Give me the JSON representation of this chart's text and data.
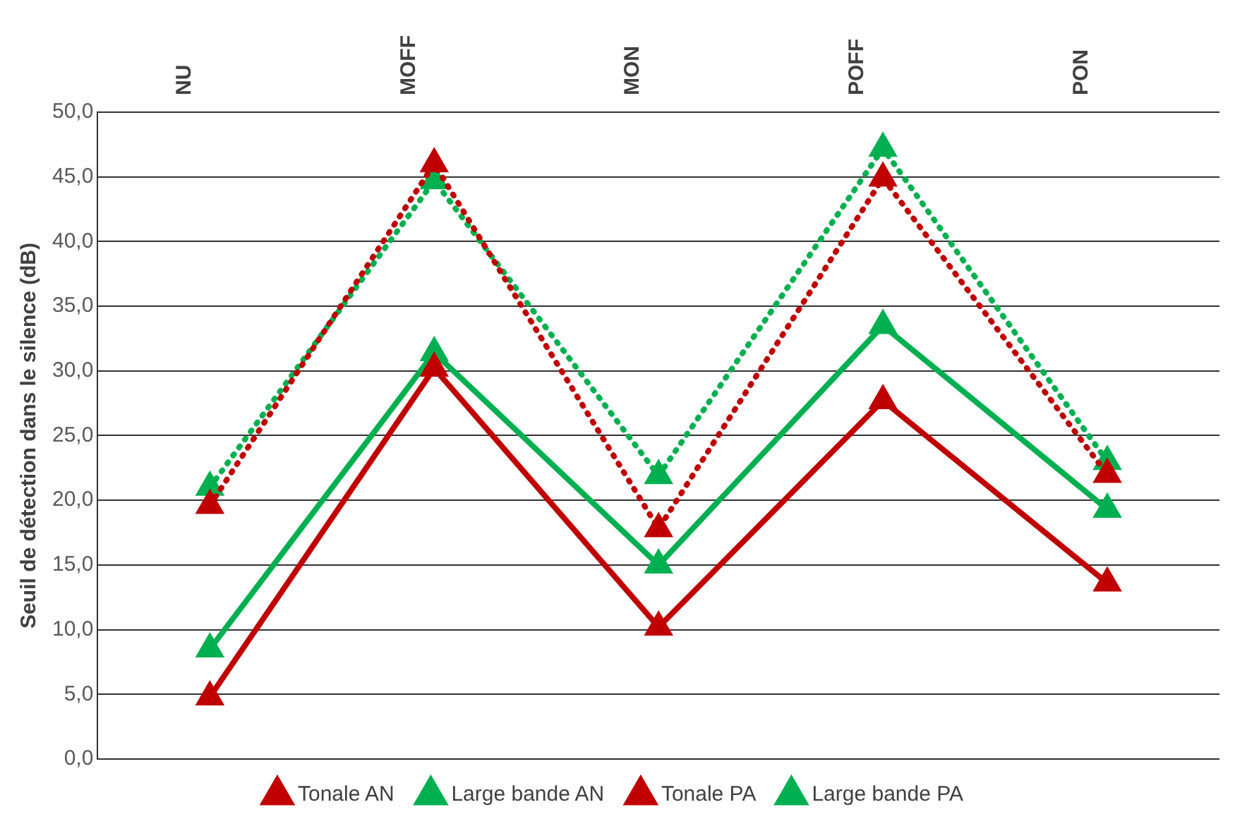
{
  "chart_data": {
    "type": "line",
    "ylabel": "Seuil de détection dans le silence (dB)",
    "categories": [
      "NU",
      "MOFF",
      "MON",
      "POFF",
      "PON"
    ],
    "series": [
      {
        "name": "Tonale AN",
        "color": "#c00000",
        "line_style": "solid",
        "values": [
          4.8,
          30.2,
          10.2,
          27.7,
          13.6
        ]
      },
      {
        "name": "Large bande AN",
        "color": "#00b050",
        "line_style": "solid",
        "values": [
          8.5,
          31.4,
          15.0,
          33.5,
          19.3
        ]
      },
      {
        "name": "Tonale PA",
        "color": "#c00000",
        "line_style": "dotted",
        "values": [
          19.6,
          46.0,
          17.8,
          44.9,
          22.0
        ]
      },
      {
        "name": "Large bande PA",
        "color": "#00b050",
        "line_style": "dotted",
        "values": [
          21.0,
          44.7,
          21.9,
          47.2,
          23.0
        ]
      }
    ],
    "ylim": [
      0,
      50
    ],
    "yticks": [
      {
        "value": 0,
        "label": "0,0"
      },
      {
        "value": 5,
        "label": "5,0"
      },
      {
        "value": 10,
        "label": "10,0"
      },
      {
        "value": 15,
        "label": "15,0"
      },
      {
        "value": 20,
        "label": "20,0"
      },
      {
        "value": 25,
        "label": "25,0"
      },
      {
        "value": 30,
        "label": "30,0"
      },
      {
        "value": 35,
        "label": "35,0"
      },
      {
        "value": 40,
        "label": "40,0"
      },
      {
        "value": 45,
        "label": "45,0"
      },
      {
        "value": 50,
        "label": "50,0"
      }
    ],
    "grid": "y",
    "legend": "bottom",
    "marker": "triangle"
  }
}
